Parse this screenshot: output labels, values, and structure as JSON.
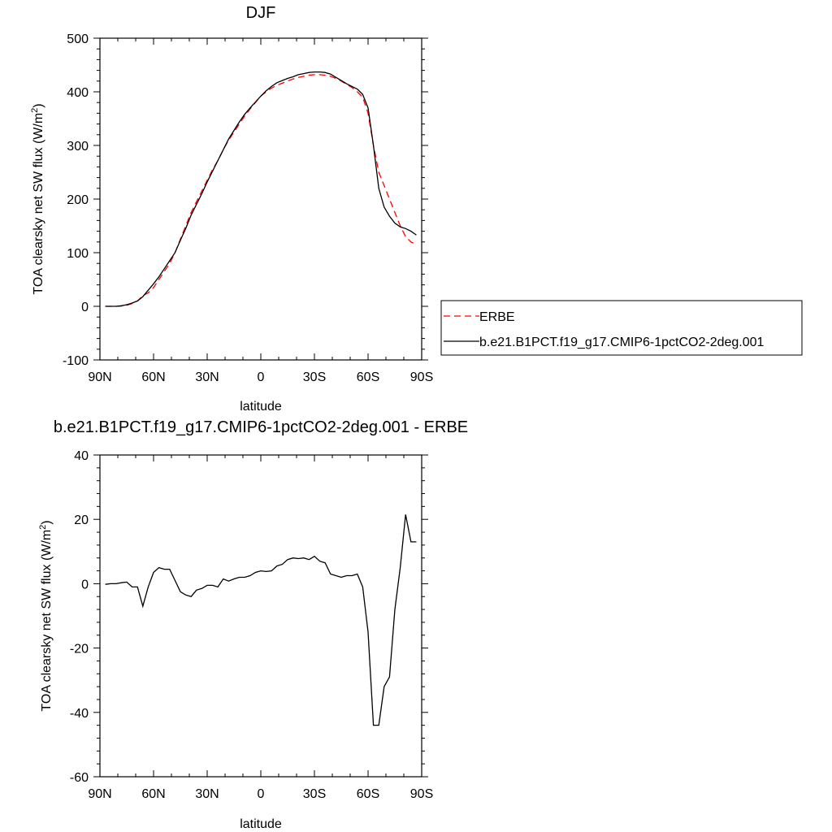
{
  "chart_data": [
    {
      "type": "line",
      "title": "DJF",
      "xlabel": "latitude",
      "ylabel_main": "TOA clearsky net SW flux (W/m",
      "ylabel_sup": "2",
      "ylabel_tail": ")",
      "xlim": [
        -90,
        90
      ],
      "ylim": [
        -100,
        500
      ],
      "x_ticks": [
        -90,
        -60,
        -30,
        0,
        30,
        60,
        90
      ],
      "x_tick_labels": [
        "90N",
        "60N",
        "30N",
        "0",
        "30S",
        "60S",
        "90S"
      ],
      "y_ticks": [
        -100,
        0,
        100,
        200,
        300,
        400,
        500
      ],
      "y_tick_labels": [
        "-100",
        "0",
        "100",
        "200",
        "300",
        "400",
        "500"
      ],
      "legend": {
        "placement": "right",
        "entries": [
          "ERBE",
          "b.e21.B1PCT.f19_g17.CMIP6-1pctCO2-2deg.001"
        ]
      },
      "series": [
        {
          "name": "ERBE",
          "color": "#ff0000",
          "dash": true,
          "x": [
            -87,
            -84,
            -81,
            -78,
            -75,
            -72,
            -69,
            -66,
            -63,
            -60,
            -57,
            -54,
            -51,
            -48,
            -45,
            -42,
            -39,
            -36,
            -33,
            -30,
            -27,
            -24,
            -21,
            -18,
            -15,
            -12,
            -9,
            -6,
            -3,
            0,
            3,
            6,
            9,
            12,
            15,
            18,
            21,
            24,
            27,
            30,
            33,
            36,
            39,
            42,
            45,
            48,
            51,
            54,
            57,
            60,
            63,
            66,
            69,
            72,
            75,
            78,
            81,
            84,
            87
          ],
          "y": [
            0,
            0,
            0,
            0.5,
            2,
            5,
            10,
            20,
            25,
            35,
            50,
            65,
            80,
            100,
            125,
            150,
            175,
            195,
            215,
            235,
            255,
            272,
            292,
            310,
            325,
            340,
            355,
            368,
            380,
            392,
            400,
            407,
            412,
            416,
            420,
            424,
            427,
            429,
            431,
            432,
            432,
            431,
            429,
            425,
            420,
            414,
            408,
            400,
            390,
            360,
            300,
            250,
            225,
            200,
            175,
            150,
            130,
            120,
            115
          ]
        },
        {
          "name": "b.e21.B1PCT.f19_g17.CMIP6-1pctCO2-2deg.001",
          "color": "#000000",
          "dash": false,
          "x": [
            -87,
            -84,
            -81,
            -78,
            -75,
            -72,
            -69,
            -66,
            -63,
            -60,
            -57,
            -54,
            -51,
            -48,
            -45,
            -42,
            -39,
            -36,
            -33,
            -30,
            -27,
            -24,
            -21,
            -18,
            -15,
            -12,
            -9,
            -6,
            -3,
            0,
            3,
            6,
            9,
            12,
            15,
            18,
            21,
            24,
            27,
            30,
            33,
            36,
            39,
            42,
            45,
            48,
            51,
            54,
            57,
            60,
            63,
            66,
            69,
            72,
            75,
            78,
            81,
            84,
            87
          ],
          "y": [
            0,
            0,
            0,
            1,
            3,
            6,
            10,
            18,
            30,
            42,
            55,
            70,
            85,
            100,
            123,
            145,
            170,
            190,
            210,
            232,
            252,
            272,
            292,
            312,
            328,
            344,
            358,
            370,
            381,
            392,
            402,
            410,
            417,
            421,
            425,
            428,
            432,
            434,
            436,
            437,
            437,
            436,
            433,
            427,
            421,
            415,
            410,
            405,
            395,
            370,
            300,
            220,
            185,
            168,
            155,
            148,
            145,
            140,
            133
          ]
        }
      ]
    },
    {
      "type": "line",
      "title": "b.e21.B1PCT.f19_g17.CMIP6-1pctCO2-2deg.001 - ERBE",
      "xlabel": "latitude",
      "ylabel_main": "TOA clearsky net SW flux (W/m",
      "ylabel_sup": "2",
      "ylabel_tail": ")",
      "xlim": [
        -90,
        90
      ],
      "ylim": [
        -60,
        40
      ],
      "x_ticks": [
        -90,
        -60,
        -30,
        0,
        30,
        60,
        90
      ],
      "x_tick_labels": [
        "90N",
        "60N",
        "30N",
        "0",
        "30S",
        "60S",
        "90S"
      ],
      "y_ticks": [
        -60,
        -40,
        -20,
        0,
        20,
        40
      ],
      "y_tick_labels": [
        "-60",
        "-40",
        "-20",
        "0",
        "20",
        "40"
      ],
      "series": [
        {
          "color": "#000000",
          "dash": false,
          "x": [
            -87,
            -84,
            -81,
            -78,
            -75,
            -72,
            -69,
            -66,
            -63,
            -60,
            -57,
            -54,
            -51,
            -48,
            -45,
            -42,
            -39,
            -36,
            -33,
            -30,
            -27,
            -24,
            -21,
            -18,
            -15,
            -12,
            -9,
            -6,
            -3,
            0,
            3,
            6,
            9,
            12,
            15,
            18,
            21,
            24,
            27,
            30,
            33,
            36,
            39,
            42,
            45,
            48,
            51,
            54,
            57,
            60,
            63,
            66,
            69,
            72,
            75,
            78,
            81,
            84,
            87
          ],
          "y": [
            -0.2,
            0,
            0,
            0.3,
            0.5,
            -1,
            -1,
            -7,
            -1,
            3.5,
            5,
            4.5,
            4.5,
            1,
            -2.5,
            -3.5,
            -4,
            -2,
            -1.5,
            -0.5,
            -0.5,
            -1,
            1.5,
            0.8,
            1.5,
            2,
            2,
            2.5,
            3.5,
            4,
            3.8,
            4,
            5.5,
            6,
            7.5,
            8,
            7.8,
            8,
            7.5,
            8.5,
            7,
            6.5,
            3,
            2.5,
            2,
            2.5,
            2.5,
            3,
            -1,
            -15,
            -44,
            -44,
            -32,
            -29,
            -8,
            5,
            21.5,
            13,
            13
          ]
        }
      ]
    }
  ]
}
